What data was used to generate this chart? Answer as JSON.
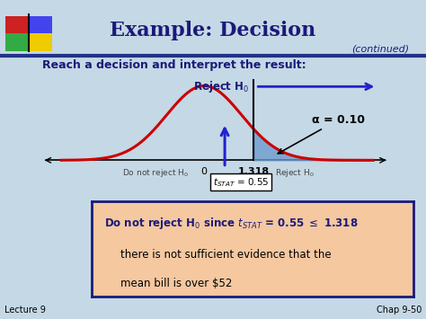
{
  "title": "Example: Decision",
  "continued": "(continued)",
  "subtitle": "Reach a decision and interpret the result:",
  "bg_color": "#c5d8e5",
  "title_color": "#1a1a7a",
  "curve_color": "#cc0000",
  "fill_color": "#6699cc",
  "critical_value": 1.318,
  "t_stat": 0.55,
  "alpha_text": "α = 0.10",
  "box_text_line2": "there is not sufficient evidence that the",
  "box_text_line3": "mean bill is over $52",
  "box_bg": "#f5c8a0",
  "box_border": "#1a1a7a",
  "footer_left": "Lecture 9",
  "footer_right": "Chap 9-50",
  "arrow_color": "#2222cc",
  "logo_colors": [
    "#cc2222",
    "#4444ee",
    "#33aa44",
    "#eecc00"
  ],
  "header_line_color": "#223388"
}
